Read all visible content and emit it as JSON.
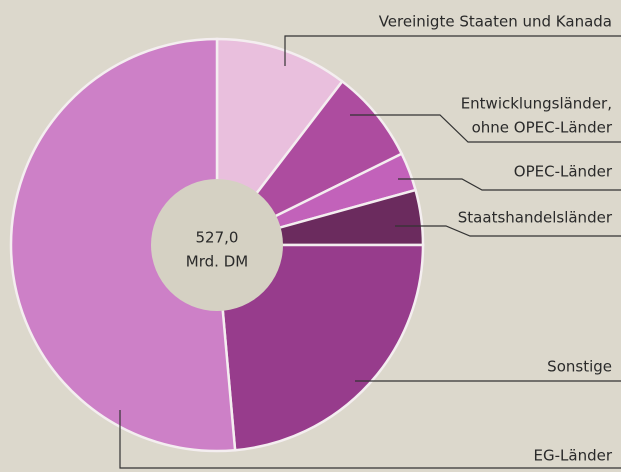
{
  "chart_data": {
    "type": "pie",
    "center_label": [
      "527,0",
      "Mrd. DM"
    ],
    "categories": [
      [
        "Vereinigte Staaten und Kanada"
      ],
      [
        "Entwicklungsländer,",
        "ohne OPEC-Länder"
      ],
      [
        "OPEC-Länder"
      ],
      [
        "Staatshandelsländer"
      ],
      [
        "Sonstige"
      ],
      [
        "EG-Länder"
      ]
    ],
    "values": [
      10.4,
      7.3,
      3.0,
      4.3,
      23.6,
      51.4
    ],
    "colors": [
      "#e9bfdd",
      "#ad4c9f",
      "#c262ba",
      "#6b2b5e",
      "#973c8c",
      "#cd80c7"
    ]
  }
}
